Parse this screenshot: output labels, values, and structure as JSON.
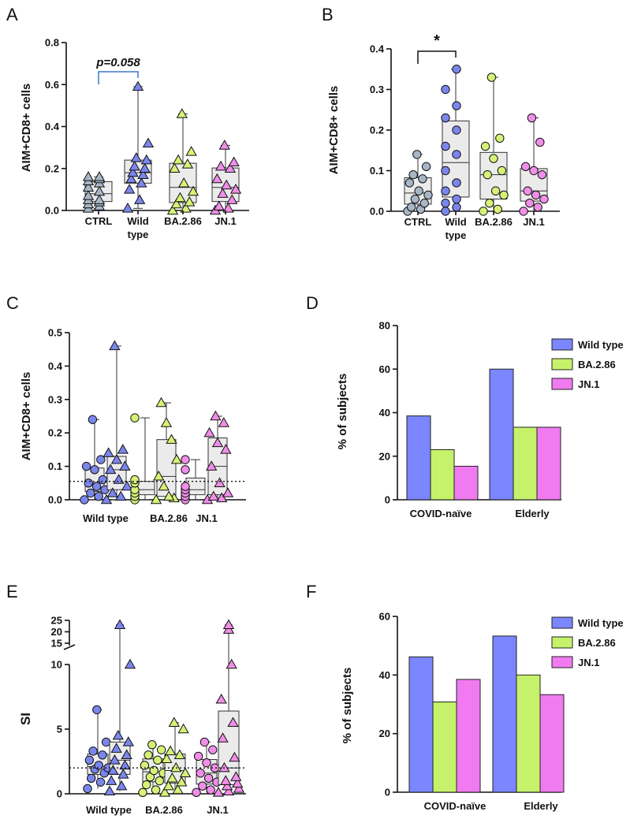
{
  "figure": {
    "panels": [
      "A",
      "B",
      "C",
      "D",
      "E",
      "F"
    ]
  },
  "colors": {
    "ctrl": "#a7b6c6",
    "wild": "#7b86ec",
    "ba": "#d6f276",
    "jn": "#f08ee8",
    "bar_wild": "#7b86ff",
    "bar_ba": "#c6f16a",
    "bar_jn": "#f07bf0",
    "box_fill": "#ebebeb",
    "bracket": "#3a78c8"
  },
  "chart_data": [
    {
      "panel": "A",
      "type": "scatter",
      "chart_kind": "box-scatter",
      "ylabel": "AIM+CD8+ cells",
      "ylim": [
        0,
        0.8
      ],
      "yticks": [
        "0.0",
        "0.2",
        "0.4",
        "0.6",
        "0.8"
      ],
      "yticks_values": [
        0,
        0.2,
        0.4,
        0.6,
        0.8
      ],
      "annotation": "p=0.058",
      "annotation_between": [
        0,
        1
      ],
      "groups": [
        {
          "label": "CTRL",
          "label2": "",
          "marker": "triangle",
          "color_key": "ctrl",
          "values": [
            0.01,
            0.02,
            0.03,
            0.04,
            0.05,
            0.05,
            0.07,
            0.09,
            0.11,
            0.13,
            0.14,
            0.15,
            0.16,
            0.16
          ]
        },
        {
          "label": "Wild",
          "label2": "type",
          "marker": "triangle",
          "color_key": "wild",
          "values": [
            0.01,
            0.05,
            0.1,
            0.13,
            0.15,
            0.17,
            0.18,
            0.2,
            0.21,
            0.24,
            0.25,
            0.32,
            0.59
          ]
        },
        {
          "label": "BA.2.86",
          "label2": "",
          "marker": "triangle",
          "color_key": "ba",
          "values": [
            0.0,
            0.01,
            0.03,
            0.04,
            0.06,
            0.09,
            0.13,
            0.2,
            0.22,
            0.24,
            0.28,
            0.46
          ]
        },
        {
          "label": "JN.1",
          "label2": "",
          "marker": "triangle",
          "color_key": "jn",
          "values": [
            0.0,
            0.01,
            0.02,
            0.05,
            0.08,
            0.1,
            0.12,
            0.15,
            0.2,
            0.21,
            0.23,
            0.31
          ]
        }
      ]
    },
    {
      "panel": "B",
      "type": "scatter",
      "chart_kind": "box-scatter",
      "ylabel": "AIM+CD8+ cells",
      "ylim": [
        0,
        0.4
      ],
      "yticks": [
        "0.0",
        "0.1",
        "0.2",
        "0.3",
        "0.4"
      ],
      "yticks_values": [
        0,
        0.1,
        0.2,
        0.3,
        0.4
      ],
      "annotation": "*",
      "annotation_between": [
        0,
        1
      ],
      "groups": [
        {
          "label": "CTRL",
          "label2": "",
          "marker": "circle",
          "color_key": "ctrl",
          "values": [
            0.0,
            0.005,
            0.01,
            0.02,
            0.03,
            0.04,
            0.05,
            0.07,
            0.08,
            0.09,
            0.11,
            0.14
          ]
        },
        {
          "label": "Wild",
          "label2": "type",
          "marker": "circle",
          "color_key": "wild",
          "values": [
            0.0,
            0.01,
            0.02,
            0.03,
            0.05,
            0.07,
            0.1,
            0.14,
            0.16,
            0.2,
            0.23,
            0.26,
            0.3,
            0.35
          ]
        },
        {
          "label": "BA.2.86",
          "label2": "",
          "marker": "circle",
          "color_key": "ba",
          "values": [
            0.0,
            0.005,
            0.02,
            0.04,
            0.05,
            0.09,
            0.1,
            0.13,
            0.16,
            0.18,
            0.33
          ]
        },
        {
          "label": "JN.1",
          "label2": "",
          "marker": "circle",
          "color_key": "jn",
          "values": [
            0.0,
            0.01,
            0.02,
            0.03,
            0.04,
            0.05,
            0.09,
            0.1,
            0.11,
            0.17,
            0.23
          ]
        }
      ]
    },
    {
      "panel": "C",
      "type": "scatter",
      "chart_kind": "paired-box-scatter",
      "ylabel": "AIM+CD8+ cells",
      "ylim": [
        0,
        0.5
      ],
      "yticks": [
        "0.0",
        "0.1",
        "0.2",
        "0.3",
        "0.4",
        "0.5"
      ],
      "yticks_values": [
        0,
        0.1,
        0.2,
        0.3,
        0.4,
        0.5
      ],
      "threshold": 0.055,
      "categories": [
        "Wild type",
        "BA.2.86",
        "JN.1"
      ],
      "series": [
        {
          "category": "Wild type",
          "marker": "circle",
          "color_key": "wild",
          "values": [
            0.0,
            0.01,
            0.02,
            0.03,
            0.04,
            0.05,
            0.06,
            0.09,
            0.1,
            0.12,
            0.24
          ]
        },
        {
          "category": "Wild type",
          "marker": "triangle",
          "color_key": "wild",
          "values": [
            0.0,
            0.01,
            0.02,
            0.04,
            0.06,
            0.09,
            0.1,
            0.12,
            0.14,
            0.15,
            0.46
          ]
        },
        {
          "category": "BA.2.86",
          "marker": "circle",
          "color_key": "ba",
          "values": [
            0.0,
            0.01,
            0.02,
            0.03,
            0.05,
            0.06,
            0.245
          ]
        },
        {
          "category": "BA.2.86",
          "marker": "triangle",
          "color_key": "ba",
          "values": [
            0.0,
            0.005,
            0.01,
            0.04,
            0.07,
            0.12,
            0.18,
            0.23,
            0.29
          ]
        },
        {
          "category": "JN.1",
          "marker": "circle",
          "color_key": "jn",
          "values": [
            0.0,
            0.01,
            0.02,
            0.03,
            0.04,
            0.09,
            0.12
          ]
        },
        {
          "category": "JN.1",
          "marker": "triangle",
          "color_key": "jn",
          "values": [
            0.0,
            0.005,
            0.01,
            0.02,
            0.05,
            0.1,
            0.15,
            0.17,
            0.2,
            0.23,
            0.25
          ]
        }
      ]
    },
    {
      "panel": "D",
      "type": "bar",
      "ylabel": "% of subjects",
      "ylim": [
        0,
        80
      ],
      "yticks": [
        "0",
        "20",
        "40",
        "60",
        "80"
      ],
      "yticks_values": [
        0,
        20,
        40,
        60,
        80
      ],
      "categories": [
        "COVID-naïve",
        "Elderly"
      ],
      "legend_position": "top-right",
      "series": [
        {
          "name": "Wild type",
          "color_key": "bar_wild",
          "values": [
            38.5,
            60
          ]
        },
        {
          "name": "BA.2.86",
          "color_key": "bar_ba",
          "values": [
            23,
            33.3
          ]
        },
        {
          "name": "JN.1",
          "color_key": "bar_jn",
          "values": [
            15.4,
            33.3
          ]
        }
      ]
    },
    {
      "panel": "E",
      "type": "scatter",
      "chart_kind": "paired-box-scatter-broken-axis",
      "ylabel": "SI",
      "ylim_lower": [
        0,
        10
      ],
      "ylim_upper": [
        15,
        25
      ],
      "yticks_lower": [
        "0",
        "5",
        "10"
      ],
      "yticks_lower_values": [
        0,
        5,
        10
      ],
      "yticks_upper": [
        "15",
        "20",
        "25"
      ],
      "yticks_upper_values": [
        15,
        20,
        25
      ],
      "threshold": 2,
      "categories": [
        "Wild type",
        "BA.2.86",
        "JN.1"
      ],
      "series": [
        {
          "category": "Wild type",
          "marker": "circle",
          "color_key": "wild",
          "values": [
            0.4,
            0.9,
            1.2,
            1.6,
            1.9,
            2.0,
            2.2,
            2.6,
            3.0,
            3.3,
            4.0,
            6.5
          ]
        },
        {
          "category": "Wild type",
          "marker": "triangle",
          "color_key": "wild",
          "values": [
            0.2,
            0.6,
            1.0,
            1.5,
            1.8,
            2.2,
            2.6,
            3.0,
            3.5,
            4.0,
            4.5,
            10.0,
            23
          ]
        },
        {
          "category": "BA.2.86",
          "marker": "circle",
          "color_key": "ba",
          "values": [
            0.1,
            0.3,
            0.7,
            1.0,
            1.3,
            1.6,
            1.8,
            2.2,
            2.6,
            3.0,
            3.4,
            3.8
          ]
        },
        {
          "category": "BA.2.86",
          "marker": "triangle",
          "color_key": "ba",
          "values": [
            0.1,
            0.3,
            0.6,
            0.9,
            1.2,
            1.6,
            2.0,
            2.7,
            3.0,
            3.3,
            5.0,
            5.5
          ]
        },
        {
          "category": "JN.1",
          "marker": "circle",
          "color_key": "jn",
          "values": [
            0.1,
            0.3,
            0.6,
            0.9,
            1.2,
            1.6,
            2.0,
            2.4,
            2.9,
            3.4,
            4.0
          ]
        },
        {
          "category": "JN.1",
          "marker": "triangle",
          "color_key": "jn",
          "values": [
            0.1,
            0.2,
            0.4,
            0.6,
            0.8,
            1.0,
            1.3,
            2.0,
            2.8,
            4.3,
            5.5,
            7.3,
            10.0,
            21,
            23
          ]
        }
      ]
    },
    {
      "panel": "F",
      "type": "bar",
      "ylabel": "% of subjects",
      "ylim": [
        0,
        60
      ],
      "yticks": [
        "0",
        "20",
        "40",
        "60"
      ],
      "yticks_values": [
        0,
        20,
        40,
        60
      ],
      "categories": [
        "COVID-naïve",
        "Elderly"
      ],
      "legend_position": "top-right",
      "series": [
        {
          "name": "Wild type",
          "color_key": "bar_wild",
          "values": [
            46.2,
            53.3
          ]
        },
        {
          "name": "BA.2.86",
          "color_key": "bar_ba",
          "values": [
            30.8,
            40
          ]
        },
        {
          "name": "JN.1",
          "color_key": "bar_jn",
          "values": [
            38.5,
            33.3
          ]
        }
      ]
    }
  ]
}
